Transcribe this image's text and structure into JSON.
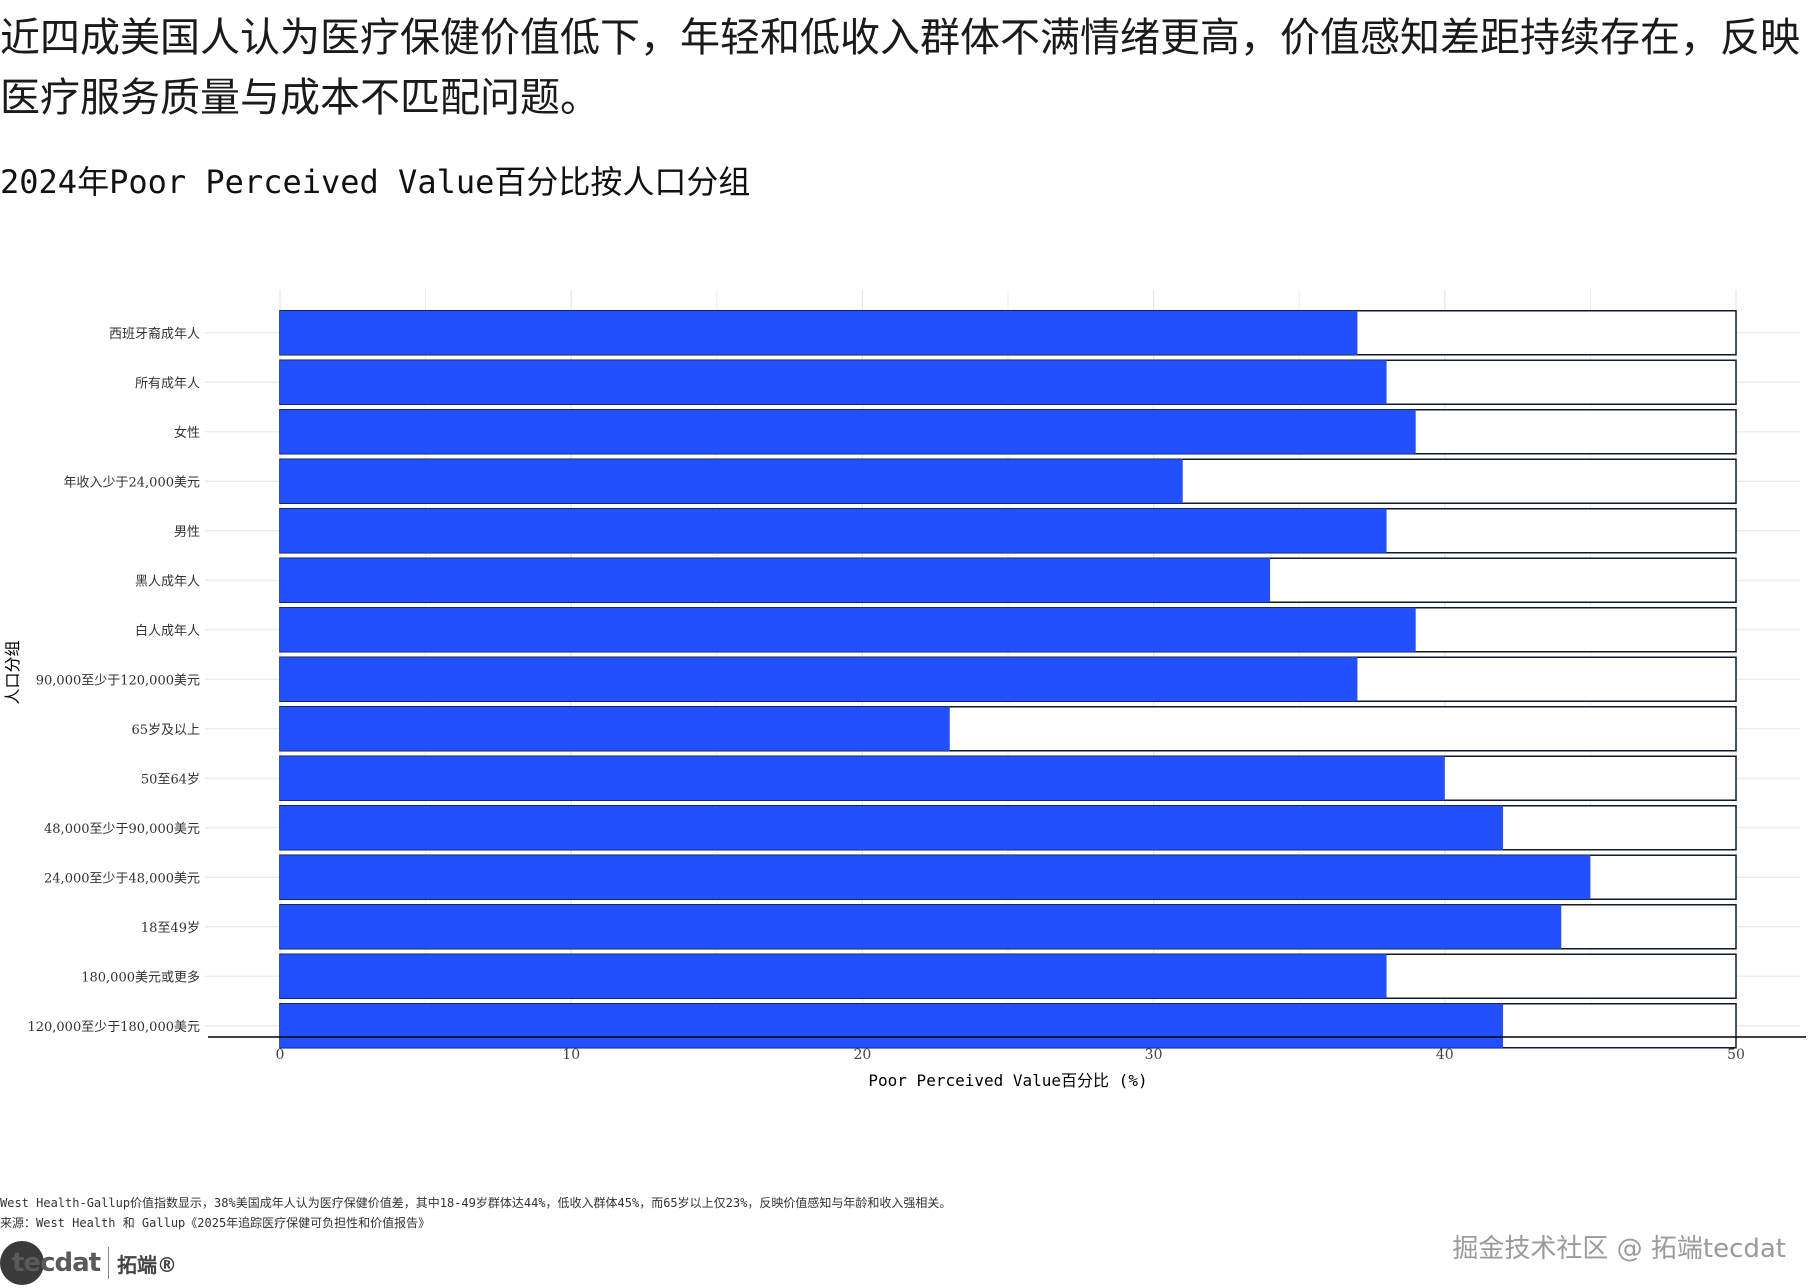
{
  "headline": "近四成美国人认为医疗保健价值低下，年轻和低收入群体不满情绪更高，价值感知差距持续存在，反映医疗服务质量与成本不匹配问题。",
  "subtitle": "2024年Poor Perceived Value百分比按人口分组",
  "footnote": {
    "line1": "West Health-Gallup价值指数显示，38%美国成年人认为医疗保健价值差，其中18-49岁群体达44%，低收入群体45%，而65岁以上仅23%，反映价值感知与年龄和收入强相关。",
    "line2": "来源：West Health 和 Gallup《2025年追踪医疗保健可负担性和价值报告》"
  },
  "brand": {
    "logo_text": "tecdat",
    "logo_cn": "拓端®",
    "watermark": "掘金技术社区 @ 拓端tecdat"
  },
  "colors": {
    "bar": "#2350ff",
    "outline": "#0d1b2a",
    "grid": "#e6e6e6",
    "axis": "#000000"
  },
  "chart_data": {
    "type": "bar",
    "orientation": "horizontal",
    "xlabel": "Poor Perceived Value百分比 (%)",
    "ylabel": "人口分组",
    "xlim": [
      0,
      50
    ],
    "xticks": [
      0,
      10,
      20,
      30,
      40,
      50
    ],
    "grid": true,
    "background_bar_value": 50,
    "categories": [
      "西班牙裔成年人",
      "所有成年人",
      "女性",
      "年收入少于24,000美元",
      "男性",
      "黑人成年人",
      "白人成年人",
      "90,000至少于120,000美元",
      "65岁及以上",
      "50至64岁",
      "48,000至少于90,000美元",
      "24,000至少于48,000美元",
      "18至49岁",
      "180,000美元或更多",
      "120,000至少于180,000美元"
    ],
    "values": [
      37,
      38,
      39,
      31,
      38,
      34,
      39,
      37,
      23,
      40,
      42,
      45,
      44,
      38,
      42
    ]
  }
}
